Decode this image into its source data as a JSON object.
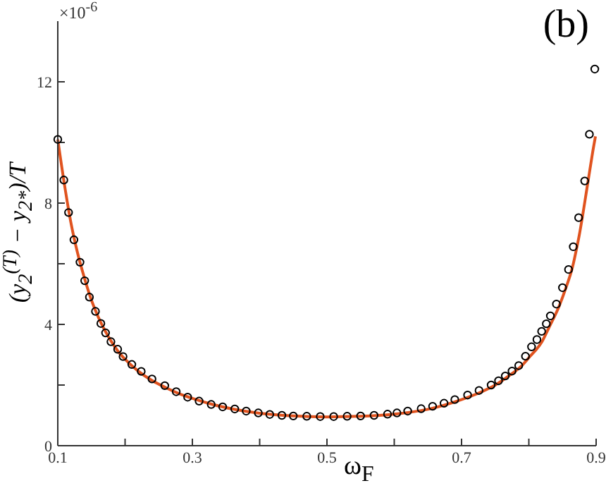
{
  "chart_data": {
    "type": "scatter",
    "xlabel": "ω$_{F}$",
    "ylabel": "(y$_{2}$$^{(T)}$ − y$_{2*}$)/T",
    "annotations": [
      "(b)",
      "×10$^{-6}$"
    ],
    "xlim": [
      0.1,
      0.9
    ],
    "xticks": [
      0.1,
      {
        "value": 0.2,
        "label": null
      },
      0.3,
      {
        "value": 0.4,
        "label": null
      },
      0.5,
      {
        "value": 0.6,
        "label": null
      },
      0.7,
      {
        "value": 0.8,
        "label": null
      },
      0.9
    ],
    "ylim": [
      0,
      14
    ],
    "yticks": [
      0,
      {
        "value": 2,
        "label": null
      },
      4,
      {
        "value": 6,
        "label": null
      },
      8,
      {
        "value": 10,
        "label": null
      },
      12
    ],
    "grid": false,
    "legend": false,
    "series": [
      {
        "type": "scatter",
        "marker": "circle",
        "color": "#000000",
        "x": [
          0.1,
          0.109,
          0.116,
          0.124,
          0.133,
          0.14,
          0.147,
          0.156,
          0.164,
          0.171,
          0.179,
          0.189,
          0.197,
          0.21,
          0.224,
          0.24,
          0.259,
          0.276,
          0.293,
          0.31,
          0.328,
          0.345,
          0.363,
          0.38,
          0.398,
          0.415,
          0.433,
          0.45,
          0.47,
          0.49,
          0.51,
          0.53,
          0.55,
          0.57,
          0.59,
          0.604,
          0.62,
          0.64,
          0.657,
          0.674,
          0.69,
          0.709,
          0.726,
          0.744,
          0.755,
          0.765,
          0.775,
          0.785,
          0.795,
          0.804,
          0.812,
          0.819,
          0.826,
          0.832,
          0.841,
          0.85,
          0.859,
          0.866,
          0.874,
          0.883,
          0.89,
          0.898
        ],
        "values": [
          10.1,
          8.76,
          7.69,
          6.79,
          6.05,
          5.44,
          4.9,
          4.43,
          4.03,
          3.72,
          3.43,
          3.18,
          2.94,
          2.68,
          2.45,
          2.2,
          1.98,
          1.78,
          1.6,
          1.47,
          1.36,
          1.28,
          1.21,
          1.14,
          1.08,
          1.03,
          1.0,
          0.98,
          0.97,
          0.96,
          0.96,
          0.97,
          0.98,
          1.0,
          1.04,
          1.08,
          1.14,
          1.22,
          1.3,
          1.4,
          1.52,
          1.67,
          1.82,
          2.0,
          2.14,
          2.3,
          2.46,
          2.64,
          2.95,
          3.26,
          3.5,
          3.77,
          4.02,
          4.28,
          4.67,
          5.21,
          5.81,
          6.56,
          7.52,
          8.73,
          10.27,
          12.42
        ]
      },
      {
        "type": "line",
        "marker": "none",
        "line_style": "solid",
        "color": "#e0531f",
        "x": [
          0.1,
          0.11,
          0.12,
          0.13,
          0.14,
          0.15,
          0.16,
          0.17,
          0.18,
          0.19,
          0.2,
          0.22,
          0.24,
          0.26,
          0.28,
          0.3,
          0.33,
          0.36,
          0.4,
          0.45,
          0.5,
          0.55,
          0.6,
          0.65,
          0.7,
          0.73,
          0.75,
          0.77,
          0.79,
          0.8,
          0.82,
          0.83,
          0.845,
          0.855,
          0.865,
          0.87,
          0.875,
          0.88,
          0.885,
          0.89,
          0.895,
          0.899
        ],
        "values": [
          10.1,
          8.6,
          7.3,
          6.3,
          5.5,
          4.8,
          4.25,
          3.8,
          3.42,
          3.1,
          2.85,
          2.45,
          2.15,
          1.92,
          1.72,
          1.56,
          1.36,
          1.21,
          1.07,
          0.98,
          0.95,
          0.97,
          1.04,
          1.2,
          1.52,
          1.78,
          2.0,
          2.3,
          2.65,
          2.9,
          3.45,
          3.9,
          4.6,
          5.2,
          5.9,
          6.4,
          6.95,
          7.6,
          8.3,
          9.0,
          9.7,
          10.2
        ]
      }
    ]
  }
}
